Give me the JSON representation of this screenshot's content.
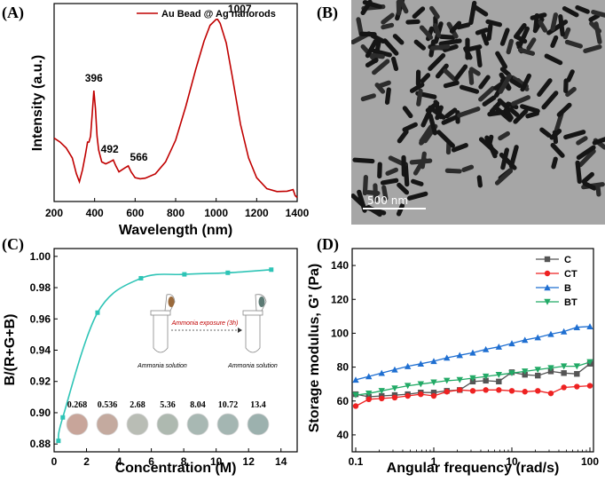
{
  "chart_data": [
    {
      "panel": "(A)",
      "type": "line",
      "xlabel": "Wavelength (nm)",
      "ylabel": "Intensity (a.u.)",
      "xlim": [
        200,
        1400
      ],
      "xticks": [
        200,
        400,
        600,
        800,
        1000,
        1200,
        1400
      ],
      "color": "#c00000",
      "legend": {
        "label": "Au Bead @ Ag nanorods",
        "position": "top-right"
      },
      "series": [
        {
          "name": "Au Bead @ Ag nanorods",
          "x": [
            200,
            230,
            260,
            290,
            310,
            325,
            340,
            355,
            365,
            372,
            380,
            388,
            396,
            404,
            412,
            420,
            435,
            455,
            475,
            492,
            505,
            520,
            535,
            550,
            566,
            580,
            600,
            625,
            650,
            700,
            750,
            800,
            850,
            900,
            940,
            970,
            1000,
            1007,
            1020,
            1050,
            1080,
            1120,
            1160,
            1200,
            1250,
            1300,
            1350,
            1380,
            1390,
            1400
          ],
          "y": [
            0.32,
            0.3,
            0.27,
            0.22,
            0.14,
            0.1,
            0.16,
            0.24,
            0.3,
            0.3,
            0.33,
            0.44,
            0.56,
            0.47,
            0.33,
            0.26,
            0.2,
            0.19,
            0.2,
            0.21,
            0.18,
            0.15,
            0.16,
            0.17,
            0.18,
            0.15,
            0.12,
            0.115,
            0.118,
            0.14,
            0.2,
            0.31,
            0.48,
            0.67,
            0.81,
            0.89,
            0.92,
            0.92,
            0.9,
            0.8,
            0.63,
            0.39,
            0.22,
            0.12,
            0.065,
            0.05,
            0.052,
            0.06,
            0.03,
            0.02
          ]
        }
      ],
      "annotations": [
        {
          "text": "396",
          "x": 396,
          "y": 0.56
        },
        {
          "text": "492",
          "x": 492,
          "y": 0.21
        },
        {
          "text": "566",
          "x": 566,
          "y": 0.18
        },
        {
          "text": "1007",
          "x": 1007,
          "y": 0.92
        }
      ]
    },
    {
      "panel": "(B)",
      "type": "image",
      "scale_bar": "500 nm"
    },
    {
      "panel": "(C)",
      "type": "scatter",
      "xlabel": "Concentration (M)",
      "ylabel": "B/(R+G+B)",
      "xlim": [
        0,
        15
      ],
      "ylim": [
        0.875,
        1.005
      ],
      "xticks": [
        0,
        2,
        4,
        6,
        8,
        10,
        12,
        14
      ],
      "yticks": [
        0.88,
        0.9,
        0.92,
        0.94,
        0.96,
        0.98,
        1.0
      ],
      "color": "#2ec4b6",
      "series": [
        {
          "x": [
            0.268,
            0.536,
            2.68,
            5.36,
            8.04,
            10.72,
            13.4
          ],
          "y": [
            0.882,
            0.897,
            0.964,
            0.986,
            0.9885,
            0.9895,
            0.9915
          ]
        }
      ],
      "concentration_labels": [
        "0.268",
        "0.536",
        "2.68",
        "5.36",
        "8.04",
        "10.72",
        "13.4"
      ],
      "swatch_colors": [
        "#c8a59a",
        "#c4aa9f",
        "#b9bdb5",
        "#aeb9b0",
        "#a8b8b3",
        "#a4b6b2",
        "#9cb1ae"
      ],
      "inset_text": {
        "left": "Ammonia solution",
        "right": "Ammonia solution",
        "arrow": "Ammonia exposure (3h)"
      }
    },
    {
      "panel": "(D)",
      "type": "line",
      "xlabel": "Angular frequency (rad/s)",
      "ylabel": "Storage modulus, G' (Pa)",
      "xscale": "log",
      "xlim": [
        0.1,
        100
      ],
      "ylim": [
        30,
        150
      ],
      "xticks": [
        "0.1",
        "1",
        "10",
        "100"
      ],
      "yticks": [
        40,
        60,
        80,
        100,
        120,
        140
      ],
      "legend": {
        "position": "top-right"
      },
      "x": [
        0.1,
        0.147,
        0.215,
        0.316,
        0.464,
        0.681,
        1,
        1.47,
        2.15,
        3.16,
        4.64,
        6.81,
        10,
        14.7,
        21.5,
        31.6,
        46.4,
        68.1,
        100
      ],
      "series": [
        {
          "name": "C",
          "color": "#555555",
          "marker": "square",
          "values": [
            64,
            62.5,
            63,
            63.5,
            64,
            65,
            65,
            66,
            66.5,
            71.5,
            72,
            71.5,
            77,
            75.5,
            75,
            77.5,
            76.5,
            76,
            82
          ]
        },
        {
          "name": "CT",
          "color": "#ee2222",
          "marker": "circle",
          "values": [
            57,
            61,
            61.5,
            62,
            63,
            64,
            63,
            65.5,
            66.5,
            66,
            66.5,
            66.5,
            66,
            65.5,
            66,
            64.5,
            68,
            68.5,
            69
          ]
        },
        {
          "name": "B",
          "color": "#1f6fd1",
          "marker": "triangle-up",
          "values": [
            72.5,
            74.5,
            76.5,
            78.5,
            80.5,
            82,
            83.5,
            85.5,
            87,
            88.5,
            90.5,
            92,
            94,
            96,
            97.5,
            99.5,
            101,
            103.5,
            104
          ]
        },
        {
          "name": "BT",
          "color": "#22aa66",
          "marker": "triangle-down",
          "values": [
            63.5,
            64.5,
            66,
            67.5,
            69,
            70,
            71,
            72,
            72.5,
            73.5,
            74.5,
            75.5,
            76.5,
            77.5,
            78.5,
            79.5,
            80.5,
            80.5,
            83
          ]
        }
      ]
    }
  ]
}
